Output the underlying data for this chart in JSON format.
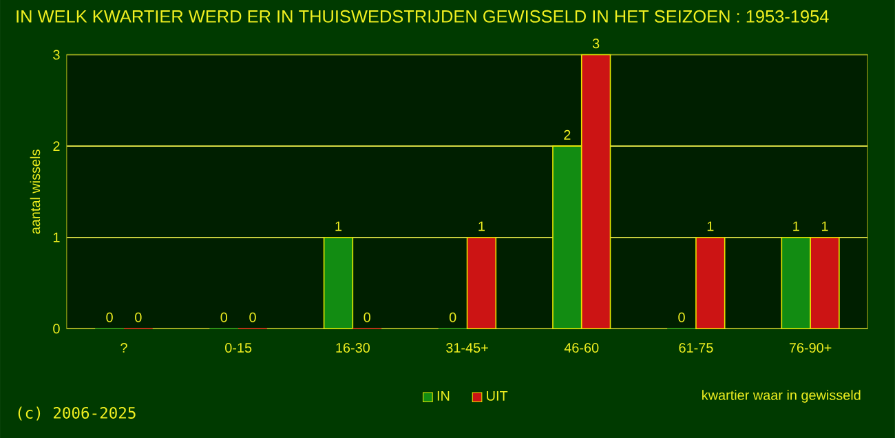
{
  "chart_data": {
    "type": "bar",
    "title": "IN WELK KWARTIER WERD ER IN THUISWEDSTRIJDEN GEWISSELD IN HET SEIZOEN : 1953-1954",
    "xlabel": "kwartier waar in gewisseld",
    "ylabel": "aantal wissels",
    "categories": [
      "?",
      "0-15",
      "16-30",
      "31-45+",
      "46-60",
      "61-75",
      "76-90+"
    ],
    "series": [
      {
        "name": "IN",
        "color": "#128c12",
        "values": [
          0,
          0,
          1,
          0,
          2,
          0,
          1
        ]
      },
      {
        "name": "UIT",
        "color": "#cc1414",
        "values": [
          0,
          0,
          0,
          1,
          3,
          1,
          1
        ]
      }
    ],
    "ylim": [
      0,
      3
    ],
    "yticks": [
      0,
      1,
      2,
      3
    ],
    "grid": "y",
    "legend": "bottom",
    "data_labels": true,
    "annotations": [
      "(c) 2006-2025"
    ]
  }
}
